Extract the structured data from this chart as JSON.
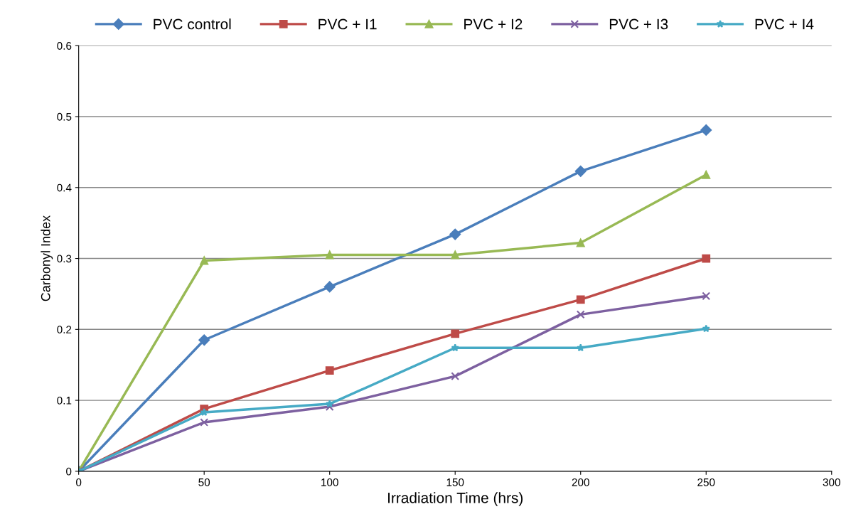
{
  "chart_data": {
    "type": "line",
    "xlabel": "Irradiation Time (hrs)",
    "ylabel": "Carbonyl Index",
    "x": [
      0,
      50,
      100,
      150,
      200,
      250
    ],
    "series": [
      {
        "name": "PVC control",
        "color": "#4a7ebb",
        "marker": "diamond",
        "values": [
          0,
          0.185,
          0.26,
          0.334,
          0.423,
          0.481
        ]
      },
      {
        "name": "PVC + I1",
        "color": "#be4b48",
        "marker": "square",
        "values": [
          0,
          0.088,
          0.142,
          0.194,
          0.242,
          0.3
        ]
      },
      {
        "name": "PVC + I2",
        "color": "#98b954",
        "marker": "triangle",
        "values": [
          0,
          0.297,
          0.305,
          0.305,
          0.322,
          0.418
        ]
      },
      {
        "name": "PVC + I3",
        "color": "#7d60a0",
        "marker": "cross",
        "values": [
          0,
          0.069,
          0.091,
          0.134,
          0.221,
          0.247
        ]
      },
      {
        "name": "PVC + I4",
        "color": "#46aac5",
        "marker": "star",
        "values": [
          0,
          0.083,
          0.095,
          0.174,
          0.174,
          0.201
        ]
      }
    ],
    "xlim": [
      0,
      300
    ],
    "xticks": [
      0,
      50,
      100,
      150,
      200,
      250,
      300
    ],
    "ylim": [
      0,
      0.6
    ],
    "yticks": [
      0,
      0.1,
      0.2,
      0.3,
      0.4,
      0.5,
      0.6
    ],
    "grid": "y",
    "legend": "top",
    "line_style": "solid"
  }
}
